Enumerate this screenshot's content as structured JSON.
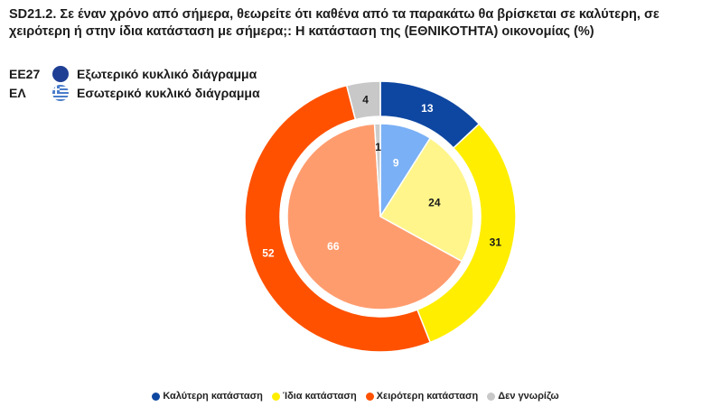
{
  "header": {
    "title": "SD21.2. Σε έναν χρόνο από σήμερα, θεωρείτε ότι καθένα από τα παρακάτω θα βρίσκεται σε καλύτερη, σε χειρότερη ή στην ίδια κατάσταση με σήμερα;: Η κατάσταση της (ΕΘΝΙΚΟΤΗΤΑ) οικονομίας (%)"
  },
  "ring_key": {
    "outer_code": "ΕΕ27",
    "outer_label": "Εξωτερικό κυκλικό διάγραμμα",
    "inner_code": "ΕΛ",
    "inner_label": "Εσωτερικό κυκλικό διάγραμμα"
  },
  "colors": {
    "eu_flag": "#1f3f94",
    "gr_flag_blue": "#4a7cc9"
  },
  "chart_data": {
    "type": "pie",
    "categories": [
      "Καλύτερη κατάσταση",
      "Ίδια κατάσταση",
      "Χειρότερη κατάσταση",
      "Δεν γνωρίζω"
    ],
    "series": [
      {
        "name": "ΕΕ27",
        "ring": "outer",
        "values": [
          13,
          31,
          52,
          4
        ],
        "colors": [
          "#0e47a1",
          "#ffee00",
          "#ff5100",
          "#c8c8c8"
        ],
        "label_colors": [
          "#ffffff",
          "#1a1a1a",
          "#ffffff",
          "#1a1a1a"
        ]
      },
      {
        "name": "ΕΛ",
        "ring": "inner",
        "values": [
          9,
          24,
          66,
          1
        ],
        "colors": [
          "#7ab0f5",
          "#fff58a",
          "#ff9c6e",
          "#cccccc"
        ],
        "label_colors": [
          "#ffffff",
          "#1a1a1a",
          "#ffffff",
          "#1a1a1a"
        ]
      }
    ],
    "legend_colors": [
      "#0e47a1",
      "#ffee00",
      "#ff5100",
      "#c8c8c8"
    ],
    "legend_position": "bottom"
  }
}
